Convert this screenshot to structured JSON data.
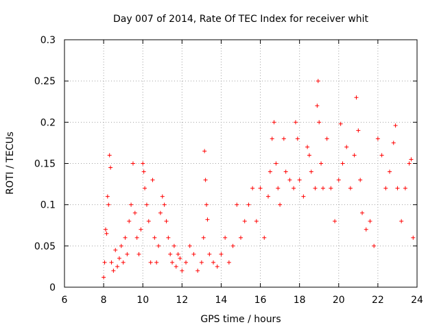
{
  "chart_data": {
    "type": "scatter",
    "title": "Day 007 of 2014, Rate Of TEC Index for receiver whit",
    "xlabel": "GPS time / hours",
    "ylabel": "ROTI / TECUs",
    "xlim": [
      6,
      24
    ],
    "ylim": [
      0,
      0.3
    ],
    "xticks": [
      "6",
      "8",
      "10",
      "12",
      "14",
      "16",
      "18",
      "20",
      "22",
      "24"
    ],
    "yticks": [
      "0",
      "0.05",
      "0.1",
      "0.15",
      "0.2",
      "0.25",
      "0.3"
    ],
    "grid": true,
    "marker": "+",
    "color": "#ff0000",
    "series": [
      {
        "name": "ROTI",
        "points": [
          [
            8.0,
            0.012
          ],
          [
            8.05,
            0.03
          ],
          [
            8.1,
            0.07
          ],
          [
            8.15,
            0.065
          ],
          [
            8.2,
            0.11
          ],
          [
            8.25,
            0.1
          ],
          [
            8.3,
            0.16
          ],
          [
            8.35,
            0.145
          ],
          [
            8.4,
            0.03
          ],
          [
            8.5,
            0.02
          ],
          [
            8.6,
            0.045
          ],
          [
            8.7,
            0.025
          ],
          [
            8.8,
            0.035
          ],
          [
            8.9,
            0.05
          ],
          [
            9.0,
            0.03
          ],
          [
            9.1,
            0.06
          ],
          [
            9.2,
            0.04
          ],
          [
            9.3,
            0.08
          ],
          [
            9.4,
            0.1
          ],
          [
            9.5,
            0.15
          ],
          [
            9.6,
            0.09
          ],
          [
            9.7,
            0.06
          ],
          [
            9.8,
            0.04
          ],
          [
            9.9,
            0.07
          ],
          [
            10.0,
            0.15
          ],
          [
            10.05,
            0.14
          ],
          [
            10.1,
            0.12
          ],
          [
            10.2,
            0.1
          ],
          [
            10.3,
            0.08
          ],
          [
            10.4,
            0.03
          ],
          [
            10.5,
            0.13
          ],
          [
            10.6,
            0.06
          ],
          [
            10.7,
            0.03
          ],
          [
            10.8,
            0.05
          ],
          [
            10.9,
            0.09
          ],
          [
            11.0,
            0.11
          ],
          [
            11.1,
            0.1
          ],
          [
            11.2,
            0.08
          ],
          [
            11.3,
            0.06
          ],
          [
            11.4,
            0.04
          ],
          [
            11.5,
            0.03
          ],
          [
            11.6,
            0.05
          ],
          [
            11.7,
            0.025
          ],
          [
            11.8,
            0.04
          ],
          [
            11.9,
            0.035
          ],
          [
            12.0,
            0.02
          ],
          [
            12.2,
            0.03
          ],
          [
            12.4,
            0.05
          ],
          [
            12.6,
            0.04
          ],
          [
            12.8,
            0.02
          ],
          [
            13.0,
            0.03
          ],
          [
            13.1,
            0.06
          ],
          [
            13.15,
            0.165
          ],
          [
            13.2,
            0.13
          ],
          [
            13.25,
            0.1
          ],
          [
            13.3,
            0.082
          ],
          [
            13.4,
            0.04
          ],
          [
            13.6,
            0.03
          ],
          [
            13.8,
            0.025
          ],
          [
            14.0,
            0.04
          ],
          [
            14.2,
            0.06
          ],
          [
            14.4,
            0.03
          ],
          [
            14.6,
            0.05
          ],
          [
            14.8,
            0.1
          ],
          [
            15.0,
            0.06
          ],
          [
            15.2,
            0.08
          ],
          [
            15.4,
            0.1
          ],
          [
            15.6,
            0.12
          ],
          [
            15.8,
            0.08
          ],
          [
            16.0,
            0.12
          ],
          [
            16.2,
            0.06
          ],
          [
            16.4,
            0.11
          ],
          [
            16.5,
            0.14
          ],
          [
            16.6,
            0.18
          ],
          [
            16.7,
            0.2
          ],
          [
            16.8,
            0.15
          ],
          [
            16.9,
            0.12
          ],
          [
            17.0,
            0.1
          ],
          [
            17.2,
            0.18
          ],
          [
            17.3,
            0.14
          ],
          [
            17.5,
            0.13
          ],
          [
            17.7,
            0.12
          ],
          [
            17.8,
            0.2
          ],
          [
            17.9,
            0.18
          ],
          [
            18.0,
            0.13
          ],
          [
            18.2,
            0.11
          ],
          [
            18.4,
            0.17
          ],
          [
            18.5,
            0.16
          ],
          [
            18.6,
            0.14
          ],
          [
            18.8,
            0.12
          ],
          [
            18.9,
            0.22
          ],
          [
            18.95,
            0.25
          ],
          [
            19.0,
            0.2
          ],
          [
            19.1,
            0.15
          ],
          [
            19.2,
            0.12
          ],
          [
            19.4,
            0.18
          ],
          [
            19.6,
            0.12
          ],
          [
            19.8,
            0.08
          ],
          [
            20.0,
            0.13
          ],
          [
            20.1,
            0.198
          ],
          [
            20.2,
            0.15
          ],
          [
            20.4,
            0.17
          ],
          [
            20.6,
            0.12
          ],
          [
            20.8,
            0.16
          ],
          [
            20.9,
            0.23
          ],
          [
            21.0,
            0.19
          ],
          [
            21.1,
            0.13
          ],
          [
            21.2,
            0.09
          ],
          [
            21.4,
            0.07
          ],
          [
            21.6,
            0.08
          ],
          [
            21.8,
            0.05
          ],
          [
            22.0,
            0.18
          ],
          [
            22.2,
            0.16
          ],
          [
            22.4,
            0.12
          ],
          [
            22.6,
            0.14
          ],
          [
            22.8,
            0.175
          ],
          [
            22.9,
            0.196
          ],
          [
            23.0,
            0.12
          ],
          [
            23.2,
            0.08
          ],
          [
            23.4,
            0.12
          ],
          [
            23.6,
            0.15
          ],
          [
            23.7,
            0.155
          ],
          [
            23.8,
            0.06
          ]
        ]
      }
    ]
  }
}
